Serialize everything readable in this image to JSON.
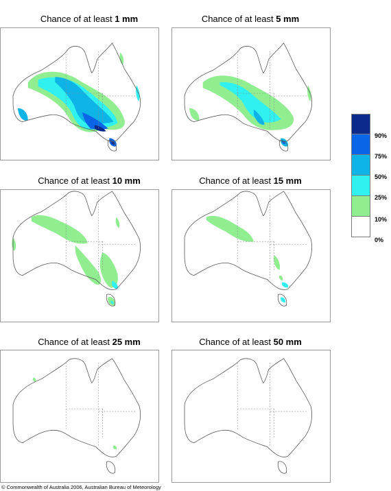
{
  "panels": [
    {
      "prefix": "Chance of at least ",
      "amount": "1 mm"
    },
    {
      "prefix": "Chance of at least ",
      "amount": "5 mm"
    },
    {
      "prefix": "Chance of at least ",
      "amount": "10 mm"
    },
    {
      "prefix": "Chance of at least ",
      "amount": "15 mm"
    },
    {
      "prefix": "Chance of at least ",
      "amount": "25 mm"
    },
    {
      "prefix": "Chance of at least ",
      "amount": "50 mm"
    }
  ],
  "legend": {
    "labels": [
      "90%",
      "75%",
      "50%",
      "25%",
      "10%",
      "0%"
    ],
    "colors": [
      "#0a2a8c",
      "#0a66e6",
      "#0fb4e6",
      "#30f0f0",
      "#90ee90",
      "#ffffff"
    ]
  },
  "copyright": "© Commonwealth of Australia 2006, Australian Bureau of Meteorology"
}
